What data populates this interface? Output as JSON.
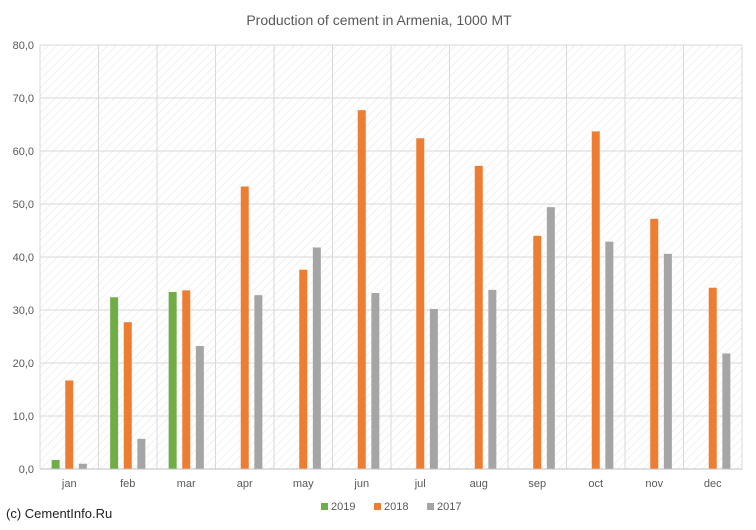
{
  "footer": "(c) CementInfo.Ru",
  "chart_data": {
    "type": "bar",
    "title": "Production of cement in Armenia, 1000 MT",
    "xlabel": "",
    "ylabel": "",
    "categories": [
      "jan",
      "feb",
      "mar",
      "apr",
      "may",
      "jun",
      "jul",
      "aug",
      "sep",
      "oct",
      "nov",
      "dec"
    ],
    "series": [
      {
        "name": "2019",
        "color": "#70ad47",
        "values": [
          1.7,
          32.4,
          33.4,
          null,
          null,
          null,
          null,
          null,
          null,
          null,
          null,
          null
        ]
      },
      {
        "name": "2018",
        "color": "#ed7d31",
        "values": [
          16.7,
          27.7,
          33.7,
          53.3,
          37.6,
          67.7,
          62.4,
          57.2,
          44.0,
          63.7,
          47.2,
          34.2
        ]
      },
      {
        "name": "2017",
        "color": "#a5a5a5",
        "values": [
          1.0,
          5.7,
          23.2,
          32.8,
          41.8,
          33.2,
          30.2,
          33.8,
          49.4,
          42.9,
          40.6,
          21.8
        ]
      }
    ],
    "ylim": [
      0,
      80
    ],
    "yticks": [
      "0,0",
      "10,0",
      "20,0",
      "30,0",
      "40,0",
      "50,0",
      "60,0",
      "70,0",
      "80,0"
    ],
    "grid": true,
    "legend": "bottom"
  }
}
